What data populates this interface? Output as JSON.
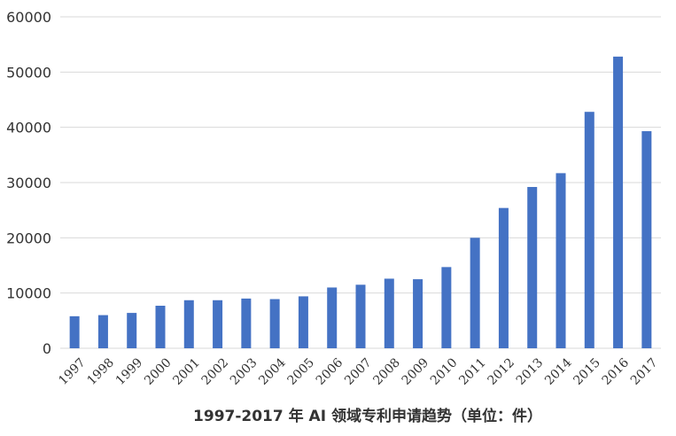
{
  "chart_data": {
    "type": "bar",
    "title": "1997-2017 年 AI 领域专利申请趋势（单位：件）",
    "xlabel": "",
    "ylabel": "",
    "categories": [
      "1997",
      "1998",
      "1999",
      "2000",
      "2001",
      "2002",
      "2003",
      "2004",
      "2005",
      "2006",
      "2007",
      "2008",
      "2009",
      "2010",
      "2011",
      "2012",
      "2013",
      "2014",
      "2015",
      "2016",
      "2017"
    ],
    "values": [
      5800,
      6000,
      6400,
      7700,
      8700,
      8700,
      9000,
      8900,
      9400,
      11000,
      11500,
      12600,
      12500,
      14700,
      20000,
      25400,
      29200,
      31700,
      42800,
      52800,
      39300
    ],
    "ylim": [
      0,
      60000
    ],
    "yticks": [
      "0",
      "10000",
      "20000",
      "30000",
      "40000",
      "50000",
      "60000"
    ],
    "grid": true,
    "legend": "none",
    "bar_color": "#4472c4",
    "grid_color": "#d9d9d9"
  }
}
